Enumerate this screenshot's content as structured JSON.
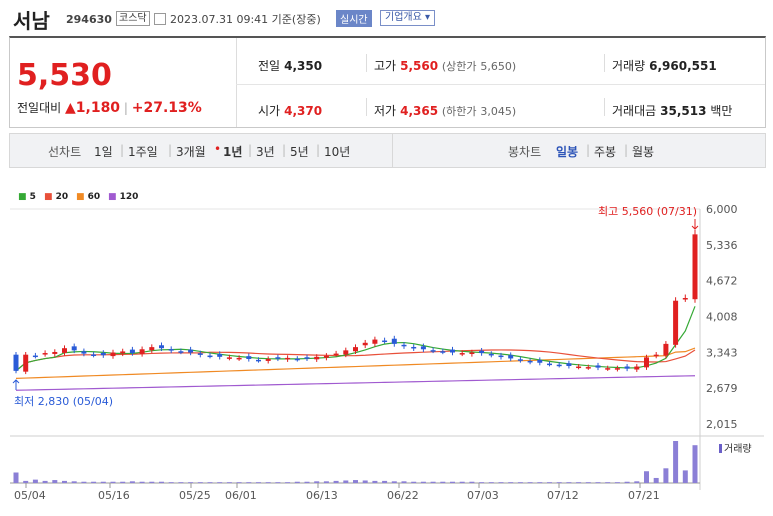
{
  "header": {
    "name": "서남",
    "code": "294630",
    "market": "코스닥",
    "datetime": "2023.07.31 09:41 기준(장중)",
    "realtime": "실시간",
    "company": "기업개요 ▾"
  },
  "quote": {
    "price": "5,530",
    "change_label": "전일대비",
    "change": "▲1,180",
    "change_pct": "+27.13%",
    "prev_label": "전일",
    "prev": "4,350",
    "open_label": "시가",
    "open": "4,370",
    "high_label": "고가",
    "high": "5,560",
    "upper_label": "(상한가",
    "upper": "5,650)",
    "low_label": "저가",
    "low": "4,365",
    "lower_label": "(하한가",
    "lower": "3,045)",
    "vol_label": "거래량",
    "vol": "6,960,551",
    "amt_label": "거래대금",
    "amt": "35,513",
    "amt_unit": "백만"
  },
  "periods": {
    "label": "선차트",
    "items": [
      "1일",
      "1주일",
      "3개월",
      "1년",
      "3년",
      "5년",
      "10년"
    ],
    "active": "1년"
  },
  "candle": {
    "label": "봉차트",
    "items": [
      "일봉",
      "주봉",
      "월봉"
    ],
    "active": "일봉"
  },
  "ma_legend": [
    {
      "label": "5",
      "color": "#35a935"
    },
    {
      "label": "20",
      "color": "#e8503a"
    },
    {
      "label": "60",
      "color": "#f08a24"
    },
    {
      "label": "120",
      "color": "#a05ad0"
    }
  ],
  "chart_data": {
    "type": "candlestick",
    "y_ticks": [
      "6,000",
      "5,336",
      "4,672",
      "4,008",
      "3,343",
      "2,679",
      "2,015"
    ],
    "ylim": [
      2015,
      6000
    ],
    "x_ticks": [
      "05/04",
      "05/16",
      "05/25",
      "06/01",
      "06/13",
      "06/22",
      "07/03",
      "07/12",
      "07/21"
    ],
    "max_label": "최고 5,560 (07/31)",
    "min_label": "최저 2,830 (05/04)",
    "volume_label": "거래량",
    "closes": [
      3000,
      3300,
      3280,
      3330,
      3350,
      3420,
      3380,
      3320,
      3300,
      3290,
      3340,
      3360,
      3330,
      3400,
      3440,
      3420,
      3380,
      3360,
      3340,
      3300,
      3280,
      3260,
      3250,
      3240,
      3220,
      3200,
      3220,
      3230,
      3240,
      3220,
      3230,
      3260,
      3280,
      3320,
      3380,
      3440,
      3520,
      3580,
      3560,
      3500,
      3460,
      3420,
      3400,
      3380,
      3360,
      3340,
      3330,
      3340,
      3330,
      3300,
      3260,
      3230,
      3200,
      3170,
      3150,
      3130,
      3110,
      3090,
      3080,
      3070,
      3060,
      3050,
      3050,
      3040,
      3080,
      3250,
      3300,
      3500,
      4300,
      4350,
      5530
    ],
    "volumes": [
      0.25,
      0.05,
      0.08,
      0.05,
      0.07,
      0.05,
      0.04,
      0.03,
      0.03,
      0.03,
      0.03,
      0.03,
      0.04,
      0.03,
      0.03,
      0.03,
      0.02,
      0.02,
      0.02,
      0.02,
      0.02,
      0.02,
      0.02,
      0.02,
      0.02,
      0.02,
      0.02,
      0.02,
      0.02,
      0.03,
      0.03,
      0.04,
      0.04,
      0.05,
      0.06,
      0.07,
      0.06,
      0.05,
      0.05,
      0.04,
      0.04,
      0.03,
      0.03,
      0.03,
      0.03,
      0.03,
      0.03,
      0.03,
      0.02,
      0.02,
      0.02,
      0.02,
      0.02,
      0.02,
      0.02,
      0.02,
      0.02,
      0.02,
      0.02,
      0.02,
      0.02,
      0.02,
      0.02,
      0.03,
      0.04,
      0.28,
      0.12,
      0.35,
      1.0,
      0.3,
      0.9
    ]
  }
}
